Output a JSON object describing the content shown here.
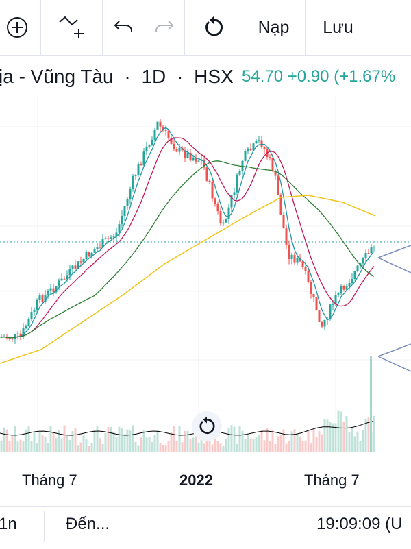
{
  "toolbar": {
    "add_icon": "plus-circle-icon",
    "indicator_icon": "indicators-icon",
    "undo_icon": "undo-icon",
    "redo_icon": "redo-icon",
    "reset_icon": "reset-icon",
    "load_label": "Nạp",
    "save_label": "Lưu"
  },
  "header": {
    "symbol_name": "ịa - Vũng Tàu",
    "interval": "1D",
    "exchange": "HSX",
    "price_change": "54.70  +0.90 (+1.67%",
    "dot": "·"
  },
  "axis": {
    "labels": [
      "Tháng 7",
      "2022",
      "Tháng 7"
    ]
  },
  "bottom_bar": {
    "range": "1n",
    "goto": "Đến...",
    "clock": "19:09:09 (U"
  },
  "colors": {
    "up": "#26a69a",
    "down": "#ef5350",
    "ma_fast": "#2196a8",
    "ma_mid": "#c2185b",
    "ma_slow": "#2e7d32",
    "ma_long": "#f0c419",
    "arrow": "#7a8cc0"
  },
  "chart_data": {
    "type": "candlestick",
    "interval": "1D",
    "x_ticks": [
      "Tháng 7",
      "2022",
      "Tháng 7"
    ],
    "last_price": 54.7,
    "change": 0.9,
    "change_pct": 1.67,
    "moving_averages": 4,
    "volume": true
  }
}
